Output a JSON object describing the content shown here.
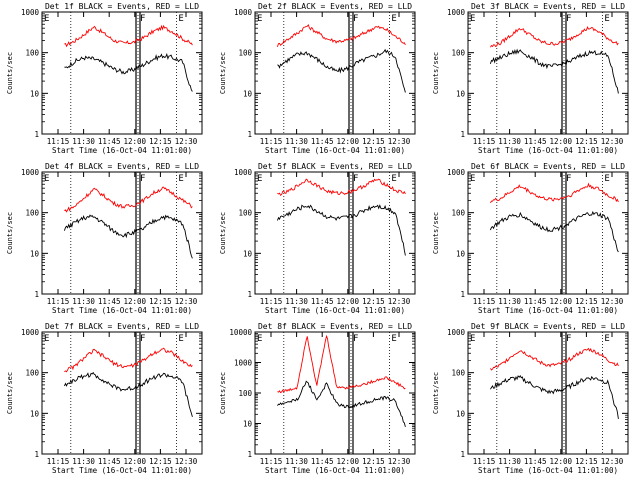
{
  "chart_data": [
    {
      "type": "line",
      "title": "Det 1f BLACK = Events, RED = LLD",
      "xlabel": "Start Time (16-Oct-04 11:01:00)",
      "ylabel": "Counts/sec",
      "x_ticks": [
        "11:15",
        "11:30",
        "11:45",
        "12:00",
        "12:15",
        "12:30"
      ],
      "y_ticks": [
        "1",
        "10",
        "100",
        "1000"
      ],
      "markers": [
        "E",
        "F",
        "E"
      ],
      "series": [
        {
          "name": "LLD",
          "color": "#ff0000",
          "values": [
            150,
            190,
            280,
            430,
            300,
            200,
            170,
            180,
            230,
            330,
            420,
            330,
            220,
            160
          ]
        },
        {
          "name": "Events",
          "color": "#000000",
          "values": [
            40,
            60,
            75,
            70,
            55,
            40,
            33,
            38,
            50,
            70,
            85,
            75,
            60,
            10
          ]
        }
      ]
    },
    {
      "type": "line",
      "title": "Det 2f BLACK = Events, RED = LLD",
      "xlabel": "Start Time (16-Oct-04 11:01:00)",
      "ylabel": "Counts/sec",
      "x_ticks": [
        "11:15",
        "11:30",
        "11:45",
        "12:00",
        "12:15",
        "12:30"
      ],
      "y_ticks": [
        "1",
        "10",
        "100",
        "1000"
      ],
      "markers": [
        "E",
        "F",
        "E"
      ],
      "series": [
        {
          "name": "LLD",
          "color": "#ff0000",
          "values": [
            150,
            210,
            300,
            460,
            320,
            220,
            190,
            200,
            240,
            320,
            430,
            380,
            250,
            170
          ]
        },
        {
          "name": "Events",
          "color": "#000000",
          "values": [
            45,
            65,
            90,
            100,
            70,
            45,
            35,
            40,
            55,
            70,
            85,
            110,
            80,
            10
          ]
        }
      ]
    },
    {
      "type": "line",
      "title": "Det 3f BLACK = Events, RED = LLD",
      "xlabel": "Start Time (16-Oct-04 11:01:00)",
      "ylabel": "Counts/sec",
      "x_ticks": [
        "11:15",
        "11:30",
        "11:45",
        "12:00",
        "12:15",
        "12:30"
      ],
      "y_ticks": [
        "1",
        "10",
        "100",
        "1000"
      ],
      "markers": [
        "E",
        "F",
        "E"
      ],
      "series": [
        {
          "name": "LLD",
          "color": "#ff0000",
          "values": [
            140,
            170,
            260,
            400,
            280,
            190,
            165,
            170,
            210,
            300,
            410,
            330,
            220,
            160
          ]
        },
        {
          "name": "Events",
          "color": "#000000",
          "values": [
            60,
            75,
            95,
            110,
            80,
            55,
            45,
            50,
            60,
            80,
            100,
            100,
            80,
            10
          ]
        }
      ]
    },
    {
      "type": "line",
      "title": "Det 4f BLACK = Events, RED = LLD",
      "xlabel": "Start Time (16-Oct-04 11:01:00)",
      "ylabel": "Counts/sec",
      "x_ticks": [
        "11:15",
        "11:30",
        "11:45",
        "12:00",
        "12:15",
        "12:30"
      ],
      "y_ticks": [
        "1",
        "10",
        "100",
        "1000"
      ],
      "markers": [
        "E",
        "F",
        "E"
      ],
      "series": [
        {
          "name": "LLD",
          "color": "#ff0000",
          "values": [
            110,
            140,
            230,
            380,
            260,
            170,
            140,
            150,
            200,
            300,
            400,
            300,
            200,
            140
          ]
        },
        {
          "name": "Events",
          "color": "#000000",
          "values": [
            40,
            55,
            75,
            80,
            55,
            35,
            28,
            32,
            40,
            60,
            80,
            70,
            55,
            8
          ]
        }
      ]
    },
    {
      "type": "line",
      "title": "Det 5f BLACK = Events, RED = LLD",
      "xlabel": "Start Time (16-Oct-04 11:01:00)",
      "ylabel": "Counts/sec",
      "x_ticks": [
        "11:15",
        "11:30",
        "11:45",
        "12:00",
        "12:15",
        "12:30"
      ],
      "y_ticks": [
        "1",
        "10",
        "100",
        "1000"
      ],
      "markers": [
        "E",
        "F",
        "E"
      ],
      "series": [
        {
          "name": "LLD",
          "color": "#ff0000",
          "values": [
            280,
            320,
            450,
            650,
            470,
            340,
            300,
            310,
            370,
            480,
            650,
            500,
            350,
            300
          ]
        },
        {
          "name": "Events",
          "color": "#000000",
          "values": [
            70,
            90,
            120,
            150,
            110,
            80,
            70,
            75,
            90,
            120,
            150,
            130,
            100,
            10
          ]
        }
      ]
    },
    {
      "type": "line",
      "title": "Det 6f BLACK = Events, RED = LLD",
      "xlabel": "Start Time (16-Oct-04 11:01:00)",
      "ylabel": "Counts/sec",
      "x_ticks": [
        "11:15",
        "11:30",
        "11:45",
        "12:00",
        "12:15",
        "12:30"
      ],
      "y_ticks": [
        "1",
        "10",
        "100",
        "1000"
      ],
      "markers": [
        "E",
        "F",
        "E"
      ],
      "series": [
        {
          "name": "LLD",
          "color": "#ff0000",
          "values": [
            190,
            220,
            320,
            450,
            330,
            240,
            210,
            220,
            260,
            360,
            470,
            380,
            260,
            200
          ]
        },
        {
          "name": "Events",
          "color": "#000000",
          "values": [
            40,
            60,
            80,
            90,
            65,
            45,
            38,
            42,
            55,
            75,
            95,
            90,
            70,
            10
          ]
        }
      ]
    },
    {
      "type": "line",
      "title": "Det 7f BLACK = Events, RED = LLD",
      "xlabel": "Start Time (16-Oct-04 11:01:00)",
      "ylabel": "Counts/sec",
      "x_ticks": [
        "11:15",
        "11:30",
        "11:45",
        "12:00",
        "12:15",
        "12:30"
      ],
      "y_ticks": [
        "1",
        "10",
        "100",
        "1000"
      ],
      "markers": [
        "E",
        "F",
        "E"
      ],
      "series": [
        {
          "name": "LLD",
          "color": "#ff0000",
          "values": [
            110,
            140,
            230,
            350,
            250,
            170,
            140,
            150,
            200,
            300,
            380,
            300,
            190,
            140
          ]
        },
        {
          "name": "Events",
          "color": "#000000",
          "values": [
            50,
            65,
            85,
            90,
            65,
            45,
            38,
            42,
            55,
            75,
            90,
            80,
            60,
            8
          ]
        }
      ]
    },
    {
      "type": "line",
      "title": "Det 8f BLACK = Events, RED = LLD",
      "xlabel": "Start Time (16-Oct-04 11:01:00)",
      "ylabel": "Counts/sec",
      "x_ticks": [
        "11:15",
        "11:30",
        "11:45",
        "12:00",
        "12:15",
        "12:30"
      ],
      "y_ticks": [
        "1",
        "10",
        "100",
        "1000",
        "10000"
      ],
      "markers": [
        "E",
        "F",
        "E"
      ],
      "series": [
        {
          "name": "LLD",
          "color": "#ff0000",
          "values": [
            110,
            120,
            150,
            8000,
            170,
            8000,
            160,
            150,
            170,
            200,
            260,
            320,
            220,
            140
          ]
        },
        {
          "name": "Events",
          "color": "#000000",
          "values": [
            40,
            50,
            60,
            250,
            60,
            200,
            45,
            35,
            40,
            50,
            60,
            70,
            55,
            8
          ]
        }
      ]
    },
    {
      "type": "line",
      "title": "Det 9f BLACK = Events, RED = LLD",
      "xlabel": "Start Time (16-Oct-04 11:01:00)",
      "ylabel": "Counts/sec",
      "x_ticks": [
        "11:15",
        "11:30",
        "11:45",
        "12:00",
        "12:15",
        "12:30"
      ],
      "y_ticks": [
        "1",
        "10",
        "100",
        "1000"
      ],
      "markers": [
        "E",
        "F",
        "E"
      ],
      "series": [
        {
          "name": "LLD",
          "color": "#ff0000",
          "values": [
            120,
            150,
            240,
            360,
            260,
            180,
            150,
            160,
            210,
            300,
            380,
            300,
            200,
            150
          ]
        },
        {
          "name": "Events",
          "color": "#000000",
          "values": [
            40,
            55,
            70,
            75,
            55,
            40,
            33,
            36,
            45,
            60,
            75,
            70,
            55,
            8
          ]
        }
      ]
    }
  ]
}
